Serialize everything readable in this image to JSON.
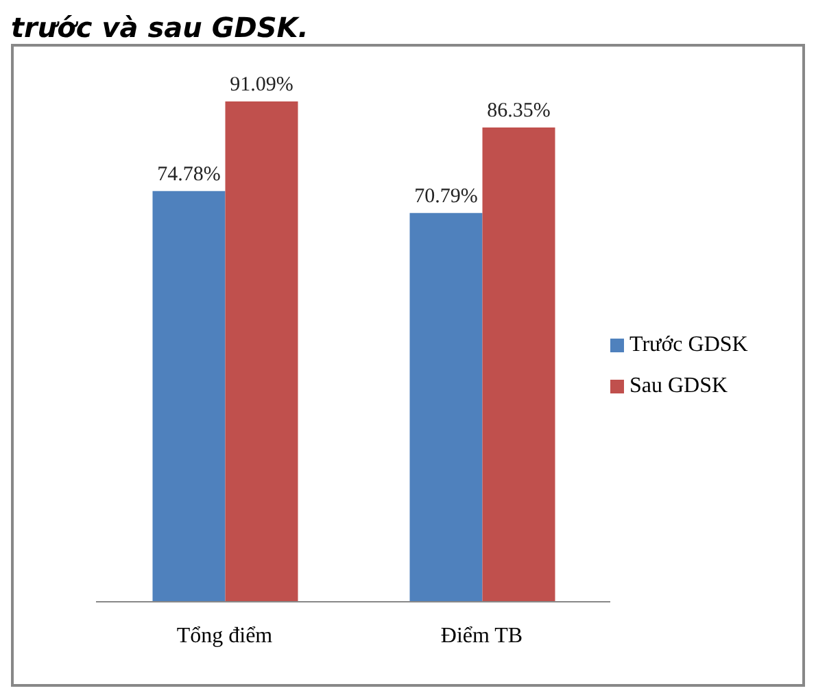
{
  "chart_data": {
    "type": "bar",
    "title": "trước và sau GDSK.",
    "categories": [
      "Tổng điểm",
      "Điểm TB"
    ],
    "series": [
      {
        "name": "Trước GDSK",
        "color": "#4f81bd",
        "values": [
          74.78,
          70.79
        ],
        "value_labels": [
          "74.78%",
          "70.79%"
        ]
      },
      {
        "name": "Sau GDSK",
        "color": "#c0504d",
        "values": [
          91.09,
          86.35
        ],
        "value_labels": [
          "91.09%",
          "86.35%"
        ]
      }
    ],
    "legend": "right"
  }
}
